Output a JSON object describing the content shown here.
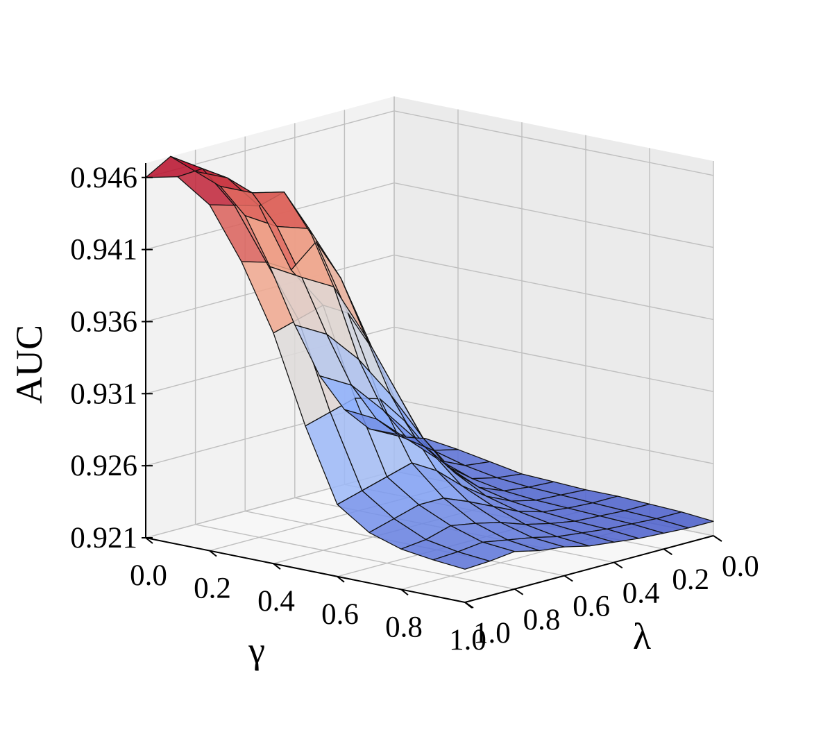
{
  "chart_data": {
    "type": "surface3d",
    "xlabel": "γ",
    "ylabel": "λ",
    "zlabel": "AUC",
    "x_ticks": [
      "0.0",
      "0.2",
      "0.4",
      "0.6",
      "0.8",
      "1.0"
    ],
    "y_ticks": [
      "0.0",
      "0.2",
      "0.4",
      "0.6",
      "0.8",
      "1.0"
    ],
    "z_ticks": [
      "0.921",
      "0.926",
      "0.931",
      "0.936",
      "0.941",
      "0.946"
    ],
    "xlim": [
      0,
      1
    ],
    "ylim": [
      0,
      1
    ],
    "zlim": [
      0.921,
      0.947
    ],
    "colormap": "coolwarm",
    "grid": true,
    "x": [
      0.0,
      0.1,
      0.2,
      0.3,
      0.4,
      0.5,
      0.6,
      0.7,
      0.8,
      0.9,
      1.0
    ],
    "y": [
      0.0,
      0.1,
      0.2,
      0.3,
      0.4,
      0.5,
      0.6,
      0.7,
      0.8,
      0.9,
      1.0
    ],
    "z": [
      [
        0.9236,
        0.9237,
        0.9234,
        0.923,
        0.9226,
        0.9225,
        0.9224,
        0.9224,
        0.9223,
        0.9222,
        0.922
      ],
      [
        0.9244,
        0.9243,
        0.9238,
        0.9232,
        0.9228,
        0.9226,
        0.9225,
        0.9224,
        0.9223,
        0.9222,
        0.922
      ],
      [
        0.9262,
        0.926,
        0.925,
        0.924,
        0.9232,
        0.9228,
        0.9226,
        0.9225,
        0.9224,
        0.9223,
        0.9221
      ],
      [
        0.929,
        0.9288,
        0.9275,
        0.926,
        0.9245,
        0.9235,
        0.923,
        0.9227,
        0.9225,
        0.9224,
        0.9222
      ],
      [
        0.933,
        0.9328,
        0.9315,
        0.9295,
        0.927,
        0.925,
        0.9238,
        0.9232,
        0.9228,
        0.9226,
        0.9224
      ],
      [
        0.9375,
        0.9372,
        0.937,
        0.934,
        0.9305,
        0.927,
        0.925,
        0.924,
        0.9232,
        0.9228,
        0.9226
      ],
      [
        0.9415,
        0.9412,
        0.9415,
        0.9385,
        0.934,
        0.9295,
        0.9265,
        0.9248,
        0.9238,
        0.9232,
        0.923
      ],
      [
        0.944,
        0.944,
        0.9445,
        0.9415,
        0.937,
        0.9315,
        0.9275,
        0.9255,
        0.9242,
        0.9235,
        0.9232
      ],
      [
        0.9455,
        0.9455,
        0.944,
        0.94,
        0.938,
        0.932,
        0.927,
        0.9255,
        0.9245,
        0.9238,
        0.9236
      ],
      [
        0.947,
        0.9466,
        0.9445,
        0.941,
        0.9375,
        0.9315,
        0.9265,
        0.925,
        0.924,
        0.9236,
        0.9234
      ],
      [
        0.946,
        0.9465,
        0.945,
        0.9415,
        0.937,
        0.931,
        0.926,
        0.9245,
        0.9238,
        0.9235,
        0.9233
      ]
    ]
  }
}
